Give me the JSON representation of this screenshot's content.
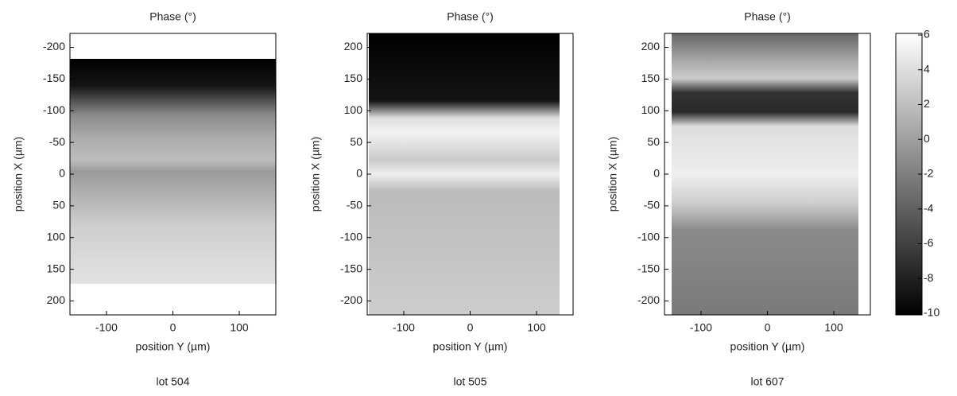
{
  "chart_data": [
    {
      "type": "image",
      "title": "Phase (°)",
      "x_label": "position Y (µm)",
      "y_label": "position X (µm)",
      "caption": "lot 504",
      "xlim": [
        -155,
        155
      ],
      "xticks": [
        -100,
        0,
        100
      ],
      "ylim": [
        -222,
        222
      ],
      "y_reversed": true,
      "yticks": [
        -200,
        -150,
        -100,
        -50,
        0,
        50,
        100,
        150,
        200
      ]
    },
    {
      "type": "image",
      "title": "Phase (°)",
      "x_label": "position Y (µm)",
      "y_label": "position X (µm)",
      "caption": "lot 505",
      "xlim": [
        -155,
        155
      ],
      "xticks": [
        -100,
        0,
        100
      ],
      "ylim": [
        -222,
        222
      ],
      "y_reversed": false,
      "yticks": [
        -200,
        -150,
        -100,
        -50,
        0,
        50,
        100,
        150,
        200
      ]
    },
    {
      "type": "image",
      "title": "Phase (°)",
      "x_label": "position Y (µm)",
      "y_label": "position X (µm)",
      "caption": "lot 607",
      "xlim": [
        -155,
        155
      ],
      "xticks": [
        -100,
        0,
        100
      ],
      "ylim": [
        -222,
        222
      ],
      "y_reversed": false,
      "yticks": [
        -200,
        -150,
        -100,
        -50,
        0,
        50,
        100,
        150,
        200
      ]
    }
  ],
  "colorbar": {
    "ylim": [
      -10,
      6
    ],
    "yticks": [
      -10,
      -8,
      -6,
      -4,
      -2,
      0,
      2,
      4,
      6
    ]
  }
}
